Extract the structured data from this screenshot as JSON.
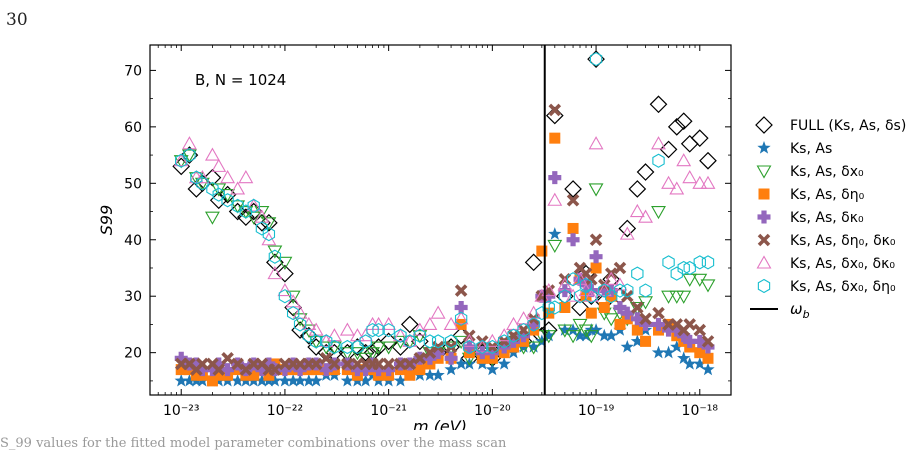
{
  "page": {
    "number": "30",
    "caption_fragment": "S_99 values for the fitted model parameter combinations over the mass scan"
  },
  "chart_data": {
    "type": "scatter",
    "annotation": "B, N = 1024",
    "xlabel": "m (eV)",
    "ylabel": "S99",
    "xscale": "log",
    "xlim": [
      5e-24,
      2e-18
    ],
    "ylim": [
      12.5,
      74.5
    ],
    "x_ticks": [
      "10⁻²³",
      "10⁻²²",
      "10⁻²¹",
      "10⁻²⁰",
      "10⁻¹⁹",
      "10⁻¹⁸"
    ],
    "x_tick_values": [
      1e-23,
      1e-22,
      1e-21,
      1e-20,
      1e-19,
      1e-18
    ],
    "y_ticks": [
      20,
      30,
      40,
      50,
      60,
      70
    ],
    "omega_b": 3.2e-20,
    "legend_position": "right",
    "series": [
      {
        "name": "FULL (Ks, As, δs)",
        "marker": "diamond",
        "color": "#000000",
        "filled": false,
        "x": [
          1e-23,
          1.2e-23,
          1.4e-23,
          1.6e-23,
          2e-23,
          2.3e-23,
          2.8e-23,
          3.5e-23,
          4.2e-23,
          5e-23,
          6e-23,
          7e-23,
          8e-23,
          1e-22,
          1.2e-22,
          1.4e-22,
          1.7e-22,
          2e-22,
          2.5e-22,
          3e-22,
          4e-22,
          5e-22,
          6e-22,
          7e-22,
          8e-22,
          1e-21,
          1.3e-21,
          1.6e-21,
          2e-21,
          2.5e-21,
          3e-21,
          4e-21,
          5e-21,
          6e-21,
          8e-21,
          1e-20,
          1.3e-20,
          1.6e-20,
          2e-20,
          2.5e-20,
          3e-20,
          3.5e-20,
          4e-20,
          5e-20,
          6e-20,
          7e-20,
          8e-20,
          9e-20,
          1e-19,
          1.2e-19,
          1.4e-19,
          1.7e-19,
          2e-19,
          2.5e-19,
          3e-19,
          4e-19,
          5e-19,
          6e-19,
          7e-19,
          8e-19,
          1e-18,
          1.2e-18
        ],
        "y": [
          53,
          55,
          49,
          50,
          51,
          47,
          48,
          45,
          44,
          45,
          43,
          43,
          36,
          34,
          28,
          24,
          23,
          21,
          20,
          20,
          20,
          21,
          20,
          20,
          21,
          22,
          21,
          25,
          22,
          19,
          20,
          21,
          23,
          19,
          20,
          19,
          21,
          22,
          22,
          36,
          23,
          24,
          62,
          30,
          49,
          28,
          34,
          30,
          72,
          29,
          33,
          30,
          42,
          49,
          52,
          64,
          56,
          60,
          61,
          57,
          58,
          54
        ]
      },
      {
        "name": "Ks, As",
        "marker": "star",
        "color": "#1f77b4",
        "filled": true,
        "x": [
          1e-23,
          1.2e-23,
          1.4e-23,
          1.6e-23,
          2e-23,
          2.3e-23,
          2.8e-23,
          3.5e-23,
          4.2e-23,
          5e-23,
          6e-23,
          7e-23,
          8e-23,
          1e-22,
          1.2e-22,
          1.4e-22,
          1.7e-22,
          2e-22,
          2.5e-22,
          3e-22,
          4e-22,
          5e-22,
          6e-22,
          7e-22,
          8e-22,
          1e-21,
          1.3e-21,
          1.6e-21,
          2e-21,
          2.5e-21,
          3e-21,
          4e-21,
          5e-21,
          6e-21,
          8e-21,
          1e-20,
          1.3e-20,
          1.6e-20,
          2e-20,
          2.5e-20,
          3e-20,
          3.5e-20,
          4e-20,
          5e-20,
          6e-20,
          7e-20,
          8e-20,
          9e-20,
          1e-19,
          1.2e-19,
          1.4e-19,
          1.7e-19,
          2e-19,
          2.5e-19,
          3e-19,
          4e-19,
          5e-19,
          6e-19,
          7e-19,
          8e-19,
          1e-18,
          1.2e-18
        ],
        "y": [
          15,
          15,
          15,
          15,
          15,
          15,
          15,
          15,
          15,
          15,
          15,
          15,
          15,
          15,
          15,
          15,
          15,
          15,
          16,
          16,
          15,
          15,
          15,
          16,
          15,
          15,
          15,
          16,
          16,
          16,
          16,
          17,
          18,
          18,
          18,
          17,
          18,
          20,
          21,
          21,
          22,
          23,
          41,
          24,
          24,
          23,
          23,
          24,
          24,
          23,
          23,
          24,
          21,
          22,
          24,
          20,
          20,
          21,
          19,
          18,
          18,
          17
        ]
      },
      {
        "name": "Ks, As, δx₀",
        "marker": "triangle-down",
        "color": "#2ca02c",
        "filled": false,
        "x": [
          1e-23,
          1.2e-23,
          1.4e-23,
          1.6e-23,
          2e-23,
          2.3e-23,
          2.8e-23,
          3.5e-23,
          4.2e-23,
          5e-23,
          6e-23,
          7e-23,
          8e-23,
          1e-22,
          1.2e-22,
          1.4e-22,
          1.7e-22,
          2e-22,
          2.5e-22,
          3e-22,
          4e-22,
          5e-22,
          6e-22,
          7e-22,
          8e-22,
          1e-21,
          1.3e-21,
          1.6e-21,
          2e-21,
          2.5e-21,
          3e-21,
          4e-21,
          5e-21,
          6e-21,
          8e-21,
          1e-20,
          1.3e-20,
          1.6e-20,
          2e-20,
          2.5e-20,
          3e-20,
          3.5e-20,
          4e-20,
          5e-20,
          6e-20,
          7e-20,
          8e-20,
          9e-20,
          1e-19,
          1.2e-19,
          1.4e-19,
          1.7e-19,
          2e-19,
          2.5e-19,
          3e-19,
          4e-19,
          5e-19,
          6e-19,
          7e-19,
          8e-19,
          1e-18,
          1.2e-18
        ],
        "y": [
          54,
          55,
          51,
          50,
          44,
          49,
          48,
          46,
          45,
          44,
          45,
          43,
          38,
          36,
          30,
          26,
          24,
          22,
          21,
          21,
          20,
          20,
          19,
          20,
          21,
          21,
          22,
          22,
          23,
          20,
          20,
          21,
          22,
          19,
          20,
          19,
          21,
          22,
          21,
          21,
          23,
          23,
          39,
          24,
          23,
          25,
          24,
          23,
          49,
          27,
          26,
          27,
          26,
          28,
          29,
          45,
          30,
          30,
          30,
          33,
          33,
          32
        ]
      },
      {
        "name": "Ks, As, δη₀",
        "marker": "square",
        "color": "#ff7f0e",
        "filled": true,
        "x": [
          1e-23,
          1.2e-23,
          1.4e-23,
          1.6e-23,
          2e-23,
          2.3e-23,
          2.8e-23,
          3.5e-23,
          4.2e-23,
          5e-23,
          6e-23,
          7e-23,
          8e-23,
          1e-22,
          1.2e-22,
          1.4e-22,
          1.7e-22,
          2e-22,
          2.5e-22,
          3e-22,
          4e-22,
          5e-22,
          6e-22,
          7e-22,
          8e-22,
          1e-21,
          1.3e-21,
          1.6e-21,
          2e-21,
          2.5e-21,
          3e-21,
          4e-21,
          5e-21,
          6e-21,
          8e-21,
          1e-20,
          1.3e-20,
          1.6e-20,
          2e-20,
          2.5e-20,
          3e-20,
          3.5e-20,
          4e-20,
          5e-20,
          6e-20,
          7e-20,
          8e-20,
          9e-20,
          1e-19,
          1.2e-19,
          1.4e-19,
          1.7e-19,
          2e-19,
          2.5e-19,
          3e-19,
          4e-19,
          5e-19,
          6e-19,
          7e-19,
          8e-19,
          1e-18,
          1.2e-18
        ],
        "y": [
          17,
          17,
          16,
          16,
          15,
          16,
          16,
          17,
          16,
          16,
          17,
          16,
          18,
          17,
          17,
          17,
          17,
          17,
          17,
          17,
          17,
          16,
          17,
          17,
          16,
          16,
          17,
          16,
          17,
          18,
          19,
          19,
          25,
          20,
          19,
          19,
          20,
          21,
          22,
          24,
          38,
          27,
          58,
          28,
          42,
          33,
          30,
          27,
          35,
          28,
          30,
          25,
          26,
          24,
          22,
          24,
          25,
          23,
          22,
          21,
          20,
          19
        ]
      },
      {
        "name": "Ks, As, δκ₀",
        "marker": "plus",
        "color": "#9467bd",
        "filled": true,
        "x": [
          1e-23,
          1.2e-23,
          1.4e-23,
          1.6e-23,
          2e-23,
          2.3e-23,
          2.8e-23,
          3.5e-23,
          4.2e-23,
          5e-23,
          6e-23,
          7e-23,
          8e-23,
          1e-22,
          1.2e-22,
          1.4e-22,
          1.7e-22,
          2e-22,
          2.5e-22,
          3e-22,
          4e-22,
          5e-22,
          6e-22,
          7e-22,
          8e-22,
          1e-21,
          1.3e-21,
          1.6e-21,
          2e-21,
          2.5e-21,
          3e-21,
          4e-21,
          5e-21,
          6e-21,
          8e-21,
          1e-20,
          1.3e-20,
          1.6e-20,
          2e-20,
          2.5e-20,
          3e-20,
          3.5e-20,
          4e-20,
          5e-20,
          6e-20,
          7e-20,
          8e-20,
          9e-20,
          1e-19,
          1.2e-19,
          1.4e-19,
          1.7e-19,
          2e-19,
          2.5e-19,
          3e-19,
          4e-19,
          5e-19,
          6e-19,
          7e-19,
          8e-19,
          1e-18,
          1.2e-18
        ],
        "y": [
          19,
          18,
          18,
          17,
          17,
          18,
          17,
          18,
          17,
          18,
          17,
          18,
          17,
          17,
          18,
          17,
          18,
          18,
          17,
          18,
          18,
          17,
          17,
          18,
          17,
          17,
          18,
          18,
          19,
          19,
          20,
          19,
          28,
          21,
          20,
          20,
          21,
          22,
          23,
          25,
          30,
          30,
          51,
          31,
          40,
          33,
          32,
          31,
          37,
          31,
          31,
          28,
          27,
          26,
          25,
          25,
          24,
          24,
          23,
          22,
          22,
          21
        ]
      },
      {
        "name": "Ks, As, δη₀, δκ₀",
        "marker": "x",
        "color": "#8c564b",
        "filled": true,
        "x": [
          1e-23,
          1.2e-23,
          1.4e-23,
          1.6e-23,
          2e-23,
          2.3e-23,
          2.8e-23,
          3.5e-23,
          4.2e-23,
          5e-23,
          6e-23,
          7e-23,
          8e-23,
          1e-22,
          1.2e-22,
          1.4e-22,
          1.7e-22,
          2e-22,
          2.5e-22,
          3e-22,
          4e-22,
          5e-22,
          6e-22,
          7e-22,
          8e-22,
          1e-21,
          1.3e-21,
          1.6e-21,
          2e-21,
          2.5e-21,
          3e-21,
          4e-21,
          5e-21,
          6e-21,
          8e-21,
          1e-20,
          1.3e-20,
          1.6e-20,
          2e-20,
          2.5e-20,
          3e-20,
          3.5e-20,
          4e-20,
          5e-20,
          6e-20,
          7e-20,
          8e-20,
          9e-20,
          1e-19,
          1.2e-19,
          1.4e-19,
          1.7e-19,
          2e-19,
          2.5e-19,
          3e-19,
          4e-19,
          5e-19,
          6e-19,
          7e-19,
          8e-19,
          1e-18,
          1.2e-18
        ],
        "y": [
          18,
          18,
          17,
          18,
          18,
          17,
          19,
          18,
          17,
          18,
          18,
          17,
          17,
          18,
          18,
          18,
          18,
          18,
          19,
          18,
          18,
          18,
          18,
          18,
          18,
          18,
          18,
          18,
          19,
          20,
          21,
          21,
          31,
          23,
          22,
          21,
          22,
          23,
          24,
          26,
          30,
          31,
          63,
          33,
          47,
          35,
          34,
          33,
          40,
          32,
          34,
          35,
          30,
          28,
          26,
          27,
          25,
          25,
          24,
          25,
          24,
          22
        ]
      },
      {
        "name": "Ks, As, δx₀, δκ₀",
        "marker": "triangle-up",
        "color": "#e377c2",
        "filled": false,
        "x": [
          1e-23,
          1.2e-23,
          1.4e-23,
          1.6e-23,
          2e-23,
          2.3e-23,
          2.8e-23,
          3.5e-23,
          4.2e-23,
          5e-23,
          6e-23,
          7e-23,
          8e-23,
          1e-22,
          1.2e-22,
          1.4e-22,
          1.7e-22,
          2e-22,
          2.5e-22,
          3e-22,
          4e-22,
          5e-22,
          6e-22,
          7e-22,
          8e-22,
          1e-21,
          1.3e-21,
          1.6e-21,
          2e-21,
          2.5e-21,
          3e-21,
          4e-21,
          5e-21,
          6e-21,
          8e-21,
          1e-20,
          1.3e-20,
          1.6e-20,
          2e-20,
          2.5e-20,
          3e-20,
          3.5e-20,
          4e-20,
          5e-20,
          6e-20,
          7e-20,
          8e-20,
          9e-20,
          1e-19,
          1.2e-19,
          1.4e-19,
          1.7e-19,
          2e-19,
          2.5e-19,
          3e-19,
          4e-19,
          5e-19,
          6e-19,
          7e-19,
          8e-19,
          1e-18,
          1.2e-18
        ],
        "y": [
          54,
          57,
          51,
          51,
          55,
          53,
          51,
          49,
          51,
          46,
          44,
          40,
          34,
          31,
          29,
          27,
          25,
          24,
          22,
          23,
          24,
          23,
          23,
          25,
          25,
          25,
          23,
          22,
          24,
          25,
          27,
          25,
          26,
          22,
          21,
          22,
          23,
          25,
          26,
          27,
          30,
          31,
          47,
          32,
          30,
          33,
          31,
          30,
          57,
          31,
          33,
          32,
          41,
          45,
          44,
          57,
          50,
          49,
          54,
          51,
          50,
          50
        ]
      },
      {
        "name": "Ks, As, δx₀, δη₀",
        "marker": "hexagon",
        "color": "#17becf",
        "filled": false,
        "x": [
          1e-23,
          1.2e-23,
          1.4e-23,
          1.6e-23,
          2e-23,
          2.3e-23,
          2.8e-23,
          3.5e-23,
          4.2e-23,
          5e-23,
          6e-23,
          7e-23,
          8e-23,
          1e-22,
          1.2e-22,
          1.4e-22,
          1.7e-22,
          2e-22,
          2.5e-22,
          3e-22,
          4e-22,
          5e-22,
          6e-22,
          7e-22,
          8e-22,
          1e-21,
          1.3e-21,
          1.6e-21,
          2e-21,
          2.5e-21,
          3e-21,
          4e-21,
          5e-21,
          6e-21,
          8e-21,
          1e-20,
          1.3e-20,
          1.6e-20,
          2e-20,
          2.5e-20,
          3e-20,
          3.5e-20,
          4e-20,
          5e-20,
          6e-20,
          7e-20,
          8e-20,
          9e-20,
          1e-19,
          1.2e-19,
          1.4e-19,
          1.7e-19,
          2e-19,
          2.5e-19,
          3e-19,
          4e-19,
          5e-19,
          6e-19,
          7e-19,
          8e-19,
          1e-18,
          1.2e-18
        ],
        "y": [
          54,
          55,
          51,
          50,
          49,
          48,
          47,
          46,
          45,
          46,
          42,
          41,
          37,
          30,
          27,
          25,
          23,
          22,
          22,
          21,
          21,
          21,
          22,
          24,
          24,
          24,
          23,
          22,
          23,
          22,
          22,
          22,
          26,
          21,
          21,
          21,
          22,
          23,
          24,
          25,
          27,
          28,
          28,
          30,
          33,
          30,
          32,
          30,
          72,
          31,
          30,
          31,
          31,
          34,
          31,
          54,
          36,
          34,
          35,
          35,
          36,
          36
        ]
      }
    ]
  }
}
